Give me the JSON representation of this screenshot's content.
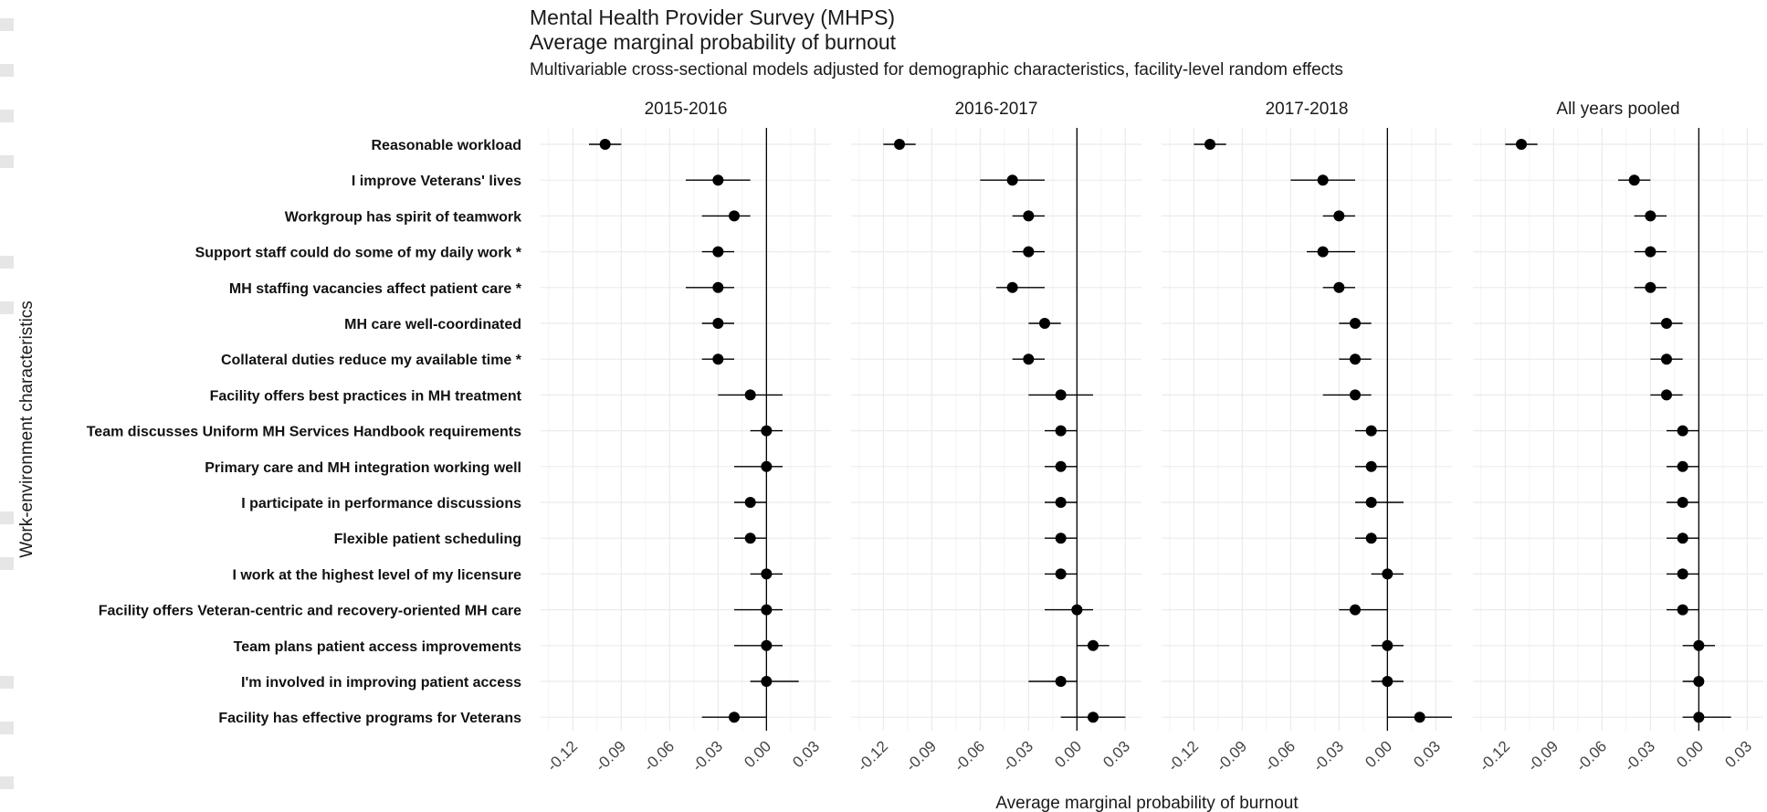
{
  "header": {
    "title_line1": "Mental Health Provider Survey (MHPS)",
    "title_line2": "Average marginal probability of burnout",
    "subtitle": "Multivariable cross-sectional models adjusted for demographic characteristics, facility-level random effects"
  },
  "colors": {
    "point": "#000000",
    "grid": "#ebebeb",
    "zero_line": "#000000",
    "watermark": "#e6e6e6"
  },
  "chart_data": {
    "type": "forest",
    "xlabel": "Average marginal probability of burnout",
    "ylabel": "Work-environment characteristics",
    "xlim": [
      -0.14,
      0.04
    ],
    "xticks": [
      -0.12,
      -0.09,
      -0.06,
      -0.03,
      0.0,
      0.03
    ],
    "xtick_labels": [
      "-0.12",
      "-0.09",
      "-0.06",
      "-0.03",
      "0.00",
      "0.03"
    ],
    "grid": true,
    "categories": [
      "Reasonable workload",
      "I improve Veterans' lives",
      "Workgroup has spirit of teamwork",
      "Support staff could do some of my daily work *",
      "MH staffing vacancies affect patient care *",
      "MH care well-coordinated",
      "Collateral duties reduce my available time *",
      "Facility offers best practices in MH treatment",
      "Team discusses Uniform MH Services Handbook requirements",
      "Primary care and MH integration working well",
      "I participate in performance discussions",
      "Flexible patient scheduling",
      "I work at the highest level of my licensure",
      "Facility offers Veteran-centric and recovery-oriented MH care",
      "Team plans patient access improvements",
      "I'm involved in improving patient access",
      "Facility has effective programs for Veterans"
    ],
    "panels": [
      {
        "name": "2015-2016",
        "estimate": [
          -0.1,
          -0.03,
          -0.02,
          -0.03,
          -0.03,
          -0.03,
          -0.03,
          -0.01,
          0.0,
          0.0,
          -0.01,
          -0.01,
          0.0,
          0.0,
          0.0,
          0.0,
          -0.02
        ],
        "lower": [
          -0.11,
          -0.05,
          -0.04,
          -0.04,
          -0.05,
          -0.04,
          -0.04,
          -0.03,
          -0.01,
          -0.02,
          -0.02,
          -0.02,
          -0.01,
          -0.02,
          -0.02,
          -0.01,
          -0.04
        ],
        "upper": [
          -0.09,
          -0.01,
          -0.01,
          -0.02,
          -0.02,
          -0.02,
          -0.02,
          0.01,
          0.01,
          0.01,
          0.0,
          0.0,
          0.01,
          0.01,
          0.01,
          0.02,
          0.0
        ]
      },
      {
        "name": "2016-2017",
        "estimate": [
          -0.11,
          -0.04,
          -0.03,
          -0.03,
          -0.04,
          -0.02,
          -0.03,
          -0.01,
          -0.01,
          -0.01,
          -0.01,
          -0.01,
          -0.01,
          0.0,
          0.01,
          -0.01,
          0.01
        ],
        "lower": [
          -0.12,
          -0.06,
          -0.04,
          -0.04,
          -0.05,
          -0.03,
          -0.04,
          -0.03,
          -0.02,
          -0.02,
          -0.02,
          -0.02,
          -0.02,
          -0.02,
          0.0,
          -0.03,
          -0.01
        ],
        "upper": [
          -0.1,
          -0.02,
          -0.02,
          -0.02,
          -0.02,
          -0.01,
          -0.02,
          0.01,
          0.0,
          0.0,
          0.0,
          0.0,
          0.0,
          0.01,
          0.02,
          0.0,
          0.03
        ]
      },
      {
        "name": "2017-2018",
        "estimate": [
          -0.11,
          -0.04,
          -0.03,
          -0.04,
          -0.03,
          -0.02,
          -0.02,
          -0.02,
          -0.01,
          -0.01,
          -0.01,
          -0.01,
          0.0,
          -0.02,
          0.0,
          0.0,
          0.02
        ],
        "lower": [
          -0.12,
          -0.06,
          -0.04,
          -0.05,
          -0.04,
          -0.03,
          -0.03,
          -0.04,
          -0.02,
          -0.02,
          -0.02,
          -0.02,
          -0.01,
          -0.03,
          -0.01,
          -0.01,
          0.0
        ],
        "upper": [
          -0.1,
          -0.02,
          -0.02,
          -0.02,
          -0.02,
          -0.01,
          -0.01,
          -0.01,
          0.0,
          0.0,
          0.01,
          0.0,
          0.01,
          0.0,
          0.01,
          0.01,
          0.04
        ]
      },
      {
        "name": "All years pooled",
        "estimate": [
          -0.11,
          -0.04,
          -0.03,
          -0.03,
          -0.03,
          -0.02,
          -0.02,
          -0.02,
          -0.01,
          -0.01,
          -0.01,
          -0.01,
          -0.01,
          -0.01,
          0.0,
          0.0,
          0.0
        ],
        "lower": [
          -0.12,
          -0.05,
          -0.04,
          -0.04,
          -0.04,
          -0.03,
          -0.03,
          -0.03,
          -0.02,
          -0.02,
          -0.02,
          -0.02,
          -0.02,
          -0.02,
          -0.01,
          -0.01,
          -0.01
        ],
        "upper": [
          -0.1,
          -0.03,
          -0.02,
          -0.02,
          -0.02,
          -0.01,
          -0.01,
          -0.01,
          0.0,
          0.0,
          0.0,
          0.0,
          0.0,
          0.0,
          0.01,
          0.0,
          0.02
        ]
      }
    ]
  }
}
